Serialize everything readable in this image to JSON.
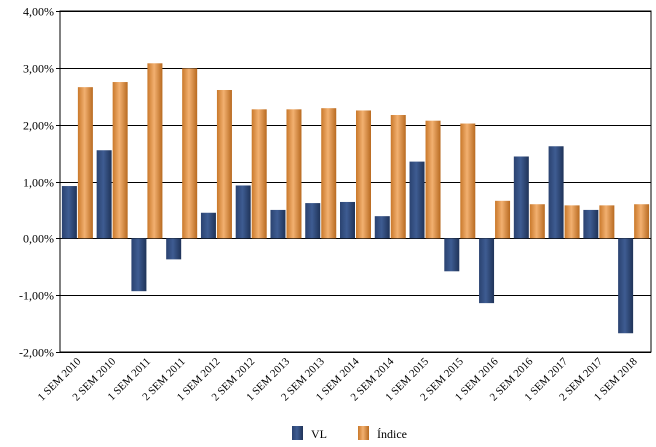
{
  "chart_data": {
    "type": "bar",
    "ylim": [
      -2.0,
      4.0
    ],
    "yticks": [
      4.0,
      3.0,
      2.0,
      1.0,
      0.0,
      -1.0,
      -2.0
    ],
    "ytick_labels": [
      "4,00%",
      "3,00%",
      "2,00%",
      "1,00%",
      "0,00%",
      "-1,00%",
      "-2,00%"
    ],
    "grid": true,
    "legend_position": "bottom-center",
    "categories": [
      "1 SEM 2010",
      "2 SEM 2010",
      "1 SEM 2011",
      "2 SEM 2011",
      "1 SEM 2012",
      "2 SEM 2012",
      "1 SEM 2013",
      "2 SEM 2013",
      "1 SEM 2014",
      "2 SEM 2014",
      "1 SEM 2015",
      "2 SEM 2015",
      "1 SEM 2016",
      "2 SEM 2016",
      "1 SEM 2017",
      "2 SEM 2017",
      "1 SEM 2018"
    ],
    "series": [
      {
        "name": "VL",
        "color": "#2E4A7D",
        "values": [
          0.92,
          1.55,
          -0.93,
          -0.37,
          0.45,
          0.93,
          0.5,
          0.62,
          0.64,
          0.39,
          1.35,
          -0.58,
          -1.14,
          1.44,
          1.62,
          0.5,
          -1.67
        ]
      },
      {
        "name": "Índice",
        "color": "#D98E3C",
        "values": [
          2.66,
          2.75,
          3.08,
          2.99,
          2.61,
          2.27,
          2.27,
          2.29,
          2.25,
          2.17,
          2.07,
          2.02,
          0.66,
          0.6,
          0.58,
          0.58,
          0.6
        ]
      }
    ]
  }
}
